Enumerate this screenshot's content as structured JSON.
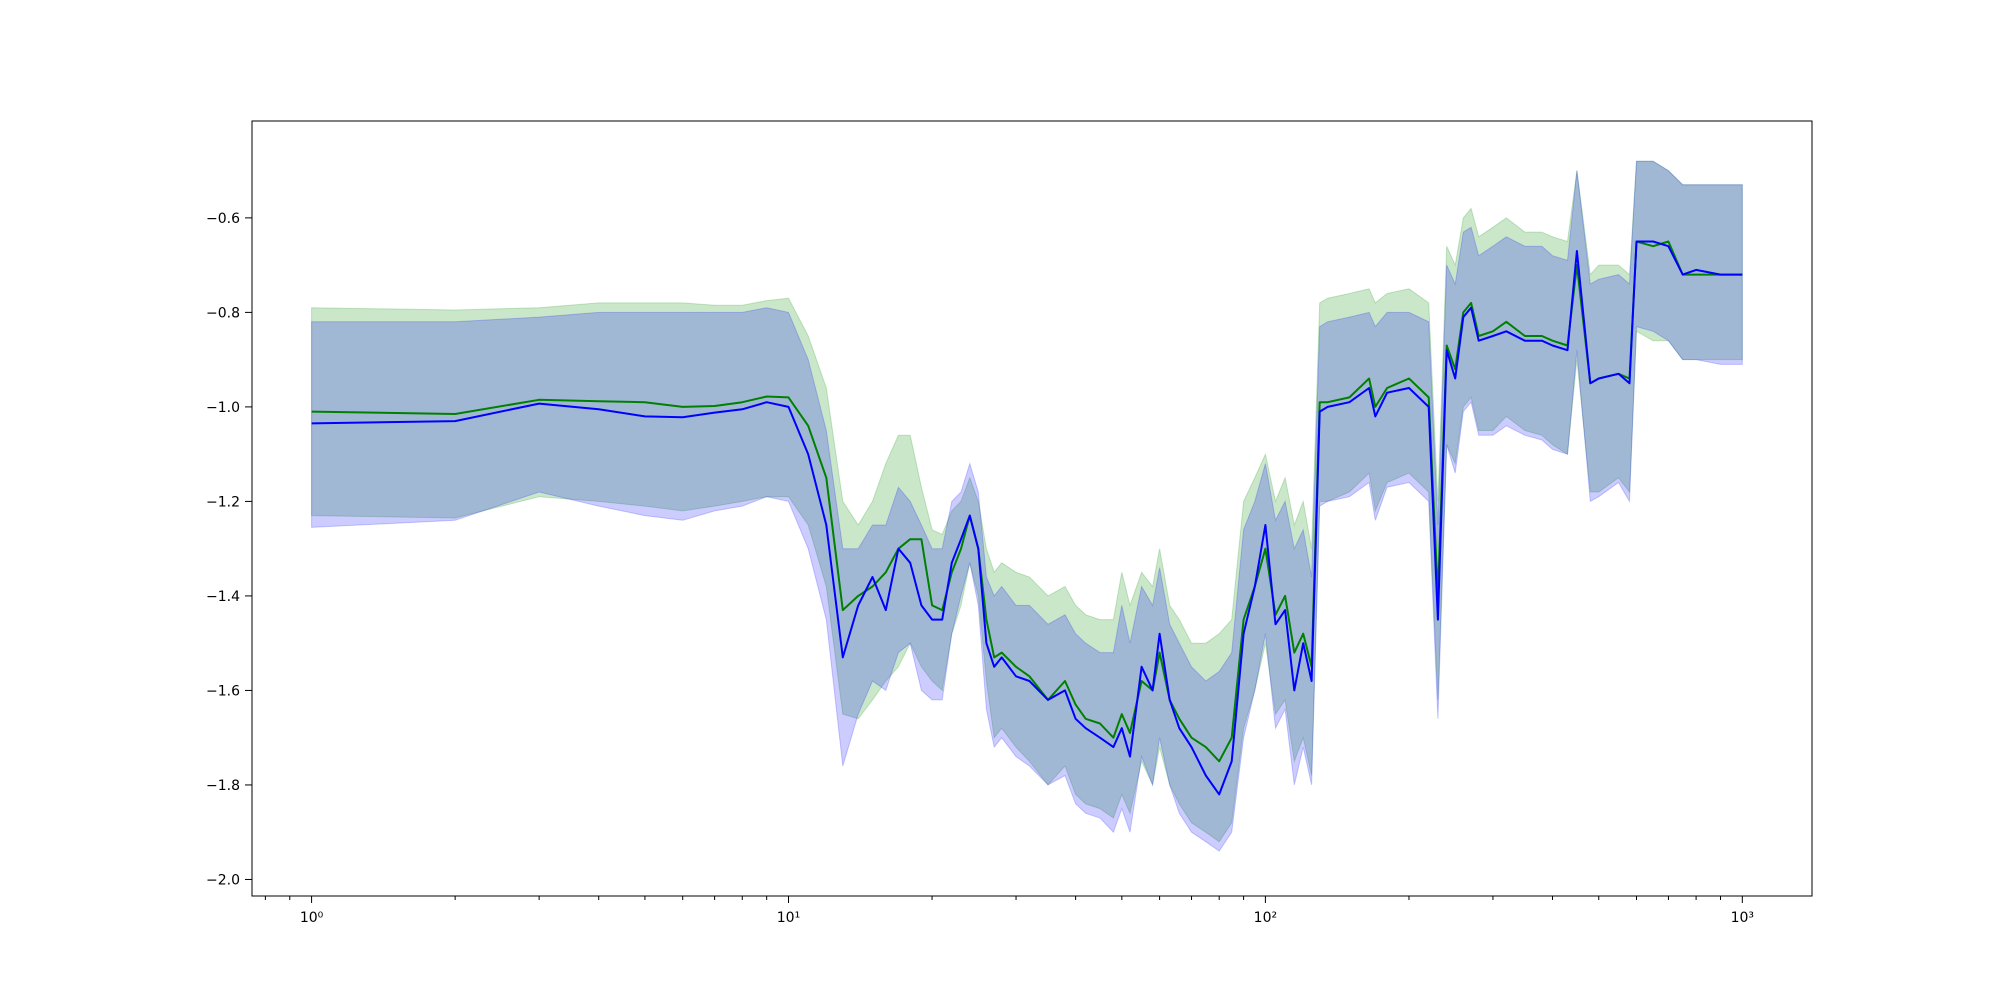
{
  "chart_data": {
    "type": "line",
    "title": "",
    "xlabel": "",
    "ylabel": "",
    "xscale": "log",
    "xlim": [
      0.75,
      1400
    ],
    "ylim": [
      -2.035,
      -0.395
    ],
    "grid": false,
    "legend": "none",
    "x_ticks": [
      {
        "value": 1,
        "label": "10⁰"
      },
      {
        "value": 10,
        "label": "10¹"
      },
      {
        "value": 100,
        "label": "10²"
      },
      {
        "value": 1000,
        "label": "10³"
      }
    ],
    "y_ticks": [
      {
        "value": -2.0,
        "label": "−2.0"
      },
      {
        "value": -1.8,
        "label": "−1.8"
      },
      {
        "value": -1.6,
        "label": "−1.6"
      },
      {
        "value": -1.4,
        "label": "−1.4"
      },
      {
        "value": -1.2,
        "label": "−1.2"
      },
      {
        "value": -1.0,
        "label": "−1.0"
      },
      {
        "value": -0.8,
        "label": "−0.8"
      },
      {
        "value": -0.6,
        "label": "−0.6"
      }
    ],
    "series": [
      {
        "color": "#008000",
        "band_color": "#2ca02c",
        "band_opacity": 0.25,
        "x": [
          1,
          2,
          3,
          4,
          5,
          6,
          7,
          8,
          9,
          10,
          11,
          12,
          13,
          14,
          15,
          16,
          17,
          18,
          19,
          20,
          21,
          22,
          23,
          24,
          25,
          26,
          27,
          28,
          30,
          32,
          35,
          38,
          40,
          42,
          45,
          48,
          50,
          52,
          55,
          58,
          60,
          63,
          66,
          70,
          75,
          80,
          85,
          90,
          95,
          100,
          105,
          110,
          115,
          120,
          125,
          130,
          135,
          150,
          165,
          170,
          180,
          200,
          220,
          230,
          240,
          250,
          260,
          270,
          280,
          300,
          320,
          350,
          380,
          400,
          430,
          450,
          480,
          500,
          550,
          580,
          600,
          650,
          700,
          750,
          800,
          900,
          1000
        ],
        "y": [
          -1.01,
          -1.015,
          -0.985,
          -0.988,
          -0.99,
          -1.0,
          -0.998,
          -0.99,
          -0.978,
          -0.98,
          -1.04,
          -1.15,
          -1.43,
          -1.4,
          -1.38,
          -1.35,
          -1.3,
          -1.28,
          -1.28,
          -1.42,
          -1.43,
          -1.35,
          -1.3,
          -1.23,
          -1.3,
          -1.45,
          -1.53,
          -1.52,
          -1.55,
          -1.57,
          -1.62,
          -1.58,
          -1.63,
          -1.66,
          -1.67,
          -1.7,
          -1.65,
          -1.69,
          -1.58,
          -1.6,
          -1.52,
          -1.62,
          -1.66,
          -1.7,
          -1.72,
          -1.75,
          -1.7,
          -1.45,
          -1.38,
          -1.3,
          -1.44,
          -1.4,
          -1.52,
          -1.48,
          -1.55,
          -0.99,
          -0.99,
          -0.98,
          -0.94,
          -1.0,
          -0.96,
          -0.94,
          -0.98,
          -1.4,
          -0.87,
          -0.92,
          -0.8,
          -0.78,
          -0.85,
          -0.84,
          -0.82,
          -0.85,
          -0.85,
          -0.86,
          -0.87,
          -0.7,
          -0.95,
          -0.94,
          -0.93,
          -0.94,
          -0.65,
          -0.66,
          -0.65,
          -0.72,
          -0.72,
          -0.72,
          -0.72
        ],
        "upper": [
          -0.79,
          -0.795,
          -0.79,
          -0.78,
          -0.78,
          -0.78,
          -0.785,
          -0.785,
          -0.775,
          -0.77,
          -0.85,
          -0.96,
          -1.2,
          -1.25,
          -1.2,
          -1.12,
          -1.06,
          -1.06,
          -1.17,
          -1.26,
          -1.27,
          -1.22,
          -1.2,
          -1.15,
          -1.2,
          -1.3,
          -1.35,
          -1.33,
          -1.35,
          -1.36,
          -1.4,
          -1.38,
          -1.42,
          -1.44,
          -1.45,
          -1.45,
          -1.35,
          -1.42,
          -1.35,
          -1.38,
          -1.3,
          -1.42,
          -1.45,
          -1.5,
          -1.5,
          -1.48,
          -1.45,
          -1.2,
          -1.15,
          -1.1,
          -1.2,
          -1.15,
          -1.25,
          -1.2,
          -1.3,
          -0.78,
          -0.77,
          -0.76,
          -0.75,
          -0.78,
          -0.76,
          -0.75,
          -0.78,
          -1.2,
          -0.66,
          -0.7,
          -0.6,
          -0.58,
          -0.64,
          -0.62,
          -0.6,
          -0.63,
          -0.63,
          -0.64,
          -0.65,
          -0.5,
          -0.72,
          -0.7,
          -0.7,
          -0.72,
          -0.48,
          -0.48,
          -0.5,
          -0.53,
          -0.53,
          -0.53,
          -0.53
        ],
        "lower": [
          -1.23,
          -1.235,
          -1.19,
          -1.2,
          -1.21,
          -1.22,
          -1.21,
          -1.2,
          -1.19,
          -1.19,
          -1.25,
          -1.38,
          -1.65,
          -1.66,
          -1.62,
          -1.58,
          -1.55,
          -1.5,
          -1.55,
          -1.58,
          -1.6,
          -1.48,
          -1.42,
          -1.33,
          -1.4,
          -1.58,
          -1.7,
          -1.68,
          -1.72,
          -1.75,
          -1.8,
          -1.76,
          -1.82,
          -1.84,
          -1.85,
          -1.87,
          -1.82,
          -1.86,
          -1.75,
          -1.8,
          -1.72,
          -1.8,
          -1.84,
          -1.88,
          -1.9,
          -1.92,
          -1.88,
          -1.68,
          -1.6,
          -1.5,
          -1.65,
          -1.62,
          -1.75,
          -1.7,
          -1.78,
          -1.2,
          -1.2,
          -1.18,
          -1.14,
          -1.22,
          -1.16,
          -1.14,
          -1.18,
          -1.62,
          -1.08,
          -1.12,
          -1.0,
          -0.98,
          -1.05,
          -1.05,
          -1.02,
          -1.05,
          -1.06,
          -1.08,
          -1.1,
          -0.9,
          -1.18,
          -1.18,
          -1.15,
          -1.18,
          -0.84,
          -0.86,
          -0.86,
          -0.9,
          -0.9,
          -0.9,
          -0.9
        ]
      },
      {
        "color": "#0000ff",
        "band_color": "#0000ff",
        "band_opacity": 0.2,
        "x": [
          1,
          2,
          3,
          4,
          5,
          6,
          7,
          8,
          9,
          10,
          11,
          12,
          13,
          14,
          15,
          16,
          17,
          18,
          19,
          20,
          21,
          22,
          23,
          24,
          25,
          26,
          27,
          28,
          30,
          32,
          35,
          38,
          40,
          42,
          45,
          48,
          50,
          52,
          55,
          58,
          60,
          63,
          66,
          70,
          75,
          80,
          85,
          90,
          95,
          100,
          105,
          110,
          115,
          120,
          125,
          130,
          135,
          150,
          165,
          170,
          180,
          200,
          220,
          230,
          240,
          250,
          260,
          270,
          280,
          300,
          320,
          350,
          380,
          400,
          430,
          450,
          480,
          500,
          550,
          580,
          600,
          650,
          700,
          750,
          800,
          900,
          1000
        ],
        "y": [
          -1.035,
          -1.03,
          -0.993,
          -1.005,
          -1.02,
          -1.022,
          -1.012,
          -1.005,
          -0.99,
          -1.0,
          -1.1,
          -1.25,
          -1.53,
          -1.42,
          -1.36,
          -1.43,
          -1.3,
          -1.33,
          -1.42,
          -1.45,
          -1.45,
          -1.33,
          -1.28,
          -1.23,
          -1.3,
          -1.5,
          -1.55,
          -1.53,
          -1.57,
          -1.58,
          -1.62,
          -1.6,
          -1.66,
          -1.68,
          -1.7,
          -1.72,
          -1.68,
          -1.74,
          -1.55,
          -1.6,
          -1.48,
          -1.62,
          -1.68,
          -1.72,
          -1.78,
          -1.82,
          -1.75,
          -1.48,
          -1.38,
          -1.25,
          -1.46,
          -1.43,
          -1.6,
          -1.5,
          -1.58,
          -1.01,
          -1.0,
          -0.99,
          -0.96,
          -1.02,
          -0.97,
          -0.96,
          -1.0,
          -1.45,
          -0.88,
          -0.94,
          -0.81,
          -0.79,
          -0.86,
          -0.85,
          -0.84,
          -0.86,
          -0.86,
          -0.87,
          -0.88,
          -0.67,
          -0.95,
          -0.94,
          -0.93,
          -0.95,
          -0.65,
          -0.65,
          -0.66,
          -0.72,
          -0.71,
          -0.72,
          -0.72
        ],
        "upper": [
          -0.82,
          -0.82,
          -0.81,
          -0.8,
          -0.8,
          -0.8,
          -0.8,
          -0.8,
          -0.79,
          -0.8,
          -0.9,
          -1.05,
          -1.3,
          -1.3,
          -1.25,
          -1.25,
          -1.17,
          -1.2,
          -1.25,
          -1.3,
          -1.3,
          -1.2,
          -1.18,
          -1.12,
          -1.18,
          -1.36,
          -1.4,
          -1.38,
          -1.42,
          -1.42,
          -1.46,
          -1.44,
          -1.48,
          -1.5,
          -1.52,
          -1.52,
          -1.42,
          -1.5,
          -1.38,
          -1.42,
          -1.34,
          -1.46,
          -1.5,
          -1.55,
          -1.58,
          -1.56,
          -1.52,
          -1.26,
          -1.2,
          -1.12,
          -1.24,
          -1.2,
          -1.3,
          -1.26,
          -1.36,
          -0.83,
          -0.82,
          -0.81,
          -0.8,
          -0.83,
          -0.8,
          -0.8,
          -0.82,
          -1.25,
          -0.7,
          -0.74,
          -0.63,
          -0.62,
          -0.68,
          -0.66,
          -0.64,
          -0.66,
          -0.66,
          -0.68,
          -0.69,
          -0.5,
          -0.74,
          -0.73,
          -0.72,
          -0.74,
          -0.48,
          -0.48,
          -0.5,
          -0.53,
          -0.53,
          -0.53,
          -0.53
        ],
        "lower": [
          -1.255,
          -1.24,
          -1.18,
          -1.21,
          -1.23,
          -1.24,
          -1.22,
          -1.21,
          -1.19,
          -1.2,
          -1.3,
          -1.45,
          -1.76,
          -1.65,
          -1.58,
          -1.6,
          -1.52,
          -1.5,
          -1.6,
          -1.62,
          -1.62,
          -1.48,
          -1.4,
          -1.33,
          -1.42,
          -1.64,
          -1.72,
          -1.7,
          -1.74,
          -1.76,
          -1.8,
          -1.78,
          -1.84,
          -1.86,
          -1.87,
          -1.9,
          -1.85,
          -1.9,
          -1.74,
          -1.8,
          -1.7,
          -1.8,
          -1.86,
          -1.9,
          -1.92,
          -1.94,
          -1.9,
          -1.7,
          -1.6,
          -1.48,
          -1.68,
          -1.64,
          -1.8,
          -1.72,
          -1.8,
          -1.21,
          -1.2,
          -1.19,
          -1.16,
          -1.24,
          -1.17,
          -1.16,
          -1.2,
          -1.66,
          -1.08,
          -1.14,
          -1.01,
          -0.99,
          -1.06,
          -1.06,
          -1.04,
          -1.06,
          -1.07,
          -1.09,
          -1.1,
          -0.88,
          -1.2,
          -1.19,
          -1.16,
          -1.2,
          -0.83,
          -0.84,
          -0.86,
          -0.9,
          -0.9,
          -0.91,
          -0.91
        ]
      }
    ]
  }
}
